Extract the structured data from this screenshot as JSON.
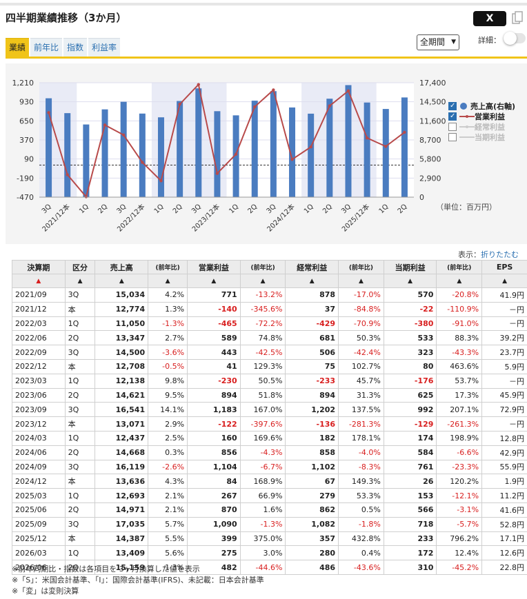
{
  "title": "四半期業績推移（3か月）",
  "x_button": "X",
  "tabs": [
    "業績",
    "前年比",
    "指数",
    "利益率"
  ],
  "period_select": "全期間",
  "detail_label": "詳細：",
  "legend": [
    {
      "label": "売上高(右軸)",
      "checked": true
    },
    {
      "label": "営業利益",
      "checked": true
    },
    {
      "label": "経常利益",
      "checked": false
    },
    {
      "label": "当期利益",
      "checked": false
    }
  ],
  "unit_label": "（単位：百万円）",
  "fold": {
    "prefix": "表示：",
    "link": "折りたたむ"
  },
  "chart_data": {
    "type": "bar+line",
    "categories": [
      "3Q",
      "2021/12本",
      "1Q",
      "2Q",
      "3Q",
      "2022/12本",
      "1Q",
      "2Q",
      "3Q",
      "2023/12本",
      "1Q",
      "2Q",
      "3Q",
      "2024/12本",
      "1Q",
      "2Q",
      "3Q",
      "2025/12本",
      "1Q",
      "2Q"
    ],
    "left_axis_ticks": [
      "1,210",
      "930",
      "650",
      "370",
      "90",
      "-190",
      "-470"
    ],
    "right_axis_ticks": [
      "17,400",
      "14,500",
      "11,600",
      "8,700",
      "5,800",
      "2,900",
      "0"
    ],
    "left_range": [
      -470,
      1210
    ],
    "right_range": [
      0,
      17400
    ],
    "series": [
      {
        "name": "売上高(右軸)",
        "type": "bar",
        "axis": "right",
        "color": "#4a7cc0",
        "values": [
          15034,
          12774,
          11050,
          13347,
          14500,
          12708,
          12138,
          14621,
          16541,
          13071,
          12437,
          14668,
          16119,
          13636,
          12693,
          14971,
          17035,
          14387,
          13409,
          15159
        ]
      },
      {
        "name": "営業利益",
        "type": "line",
        "axis": "left",
        "color": "#b84a4a",
        "values": [
          771,
          -140,
          -465,
          589,
          443,
          41,
          -230,
          894,
          1183,
          -122,
          160,
          856,
          1104,
          84,
          267,
          870,
          1090,
          399,
          275,
          482
        ]
      }
    ],
    "shaded_years": [
      true,
      false,
      true,
      false,
      true
    ]
  },
  "table": {
    "headers": [
      "決算期",
      "区分",
      "売上高",
      "(前年比)",
      "営業利益",
      "(前年比)",
      "経常利益",
      "(前年比)",
      "当期利益",
      "(前年比)",
      "EPS"
    ],
    "sort_marks": [
      "▲",
      "▲",
      "▲",
      "▲",
      "▲",
      "▲",
      "▲",
      "▲",
      "▲",
      "▲",
      "▲"
    ],
    "rows": [
      [
        "2021/09",
        "3Q",
        "15,034",
        "4.2%",
        "771",
        "-13.2%",
        "878",
        "-17.0%",
        "570",
        "-20.8%",
        "41.9円"
      ],
      [
        "2021/12",
        "本",
        "12,774",
        "1.3%",
        "-140",
        "-345.6%",
        "37",
        "-84.8%",
        "-22",
        "-110.9%",
        "－円"
      ],
      [
        "2022/03",
        "1Q",
        "11,050",
        "-1.3%",
        "-465",
        "-72.2%",
        "-429",
        "-70.9%",
        "-380",
        "-91.0%",
        "－円"
      ],
      [
        "2022/06",
        "2Q",
        "13,347",
        "2.7%",
        "589",
        "74.8%",
        "681",
        "50.3%",
        "533",
        "88.3%",
        "39.2円"
      ],
      [
        "2022/09",
        "3Q",
        "14,500",
        "-3.6%",
        "443",
        "-42.5%",
        "506",
        "-42.4%",
        "323",
        "-43.3%",
        "23.7円"
      ],
      [
        "2022/12",
        "本",
        "12,708",
        "-0.5%",
        "41",
        "129.3%",
        "75",
        "102.7%",
        "80",
        "463.6%",
        "5.9円"
      ],
      [
        "2023/03",
        "1Q",
        "12,138",
        "9.8%",
        "-230",
        "50.5%",
        "-233",
        "45.7%",
        "-176",
        "53.7%",
        "－円"
      ],
      [
        "2023/06",
        "2Q",
        "14,621",
        "9.5%",
        "894",
        "51.8%",
        "894",
        "31.3%",
        "625",
        "17.3%",
        "45.9円"
      ],
      [
        "2023/09",
        "3Q",
        "16,541",
        "14.1%",
        "1,183",
        "167.0%",
        "1,202",
        "137.5%",
        "992",
        "207.1%",
        "72.9円"
      ],
      [
        "2023/12",
        "本",
        "13,071",
        "2.9%",
        "-122",
        "-397.6%",
        "-136",
        "-281.3%",
        "-129",
        "-261.3%",
        "－円"
      ],
      [
        "2024/03",
        "1Q",
        "12,437",
        "2.5%",
        "160",
        "169.6%",
        "182",
        "178.1%",
        "174",
        "198.9%",
        "12.8円"
      ],
      [
        "2024/06",
        "2Q",
        "14,668",
        "0.3%",
        "856",
        "-4.3%",
        "858",
        "-4.0%",
        "584",
        "-6.6%",
        "42.9円"
      ],
      [
        "2024/09",
        "3Q",
        "16,119",
        "-2.6%",
        "1,104",
        "-6.7%",
        "1,102",
        "-8.3%",
        "761",
        "-23.3%",
        "55.9円"
      ],
      [
        "2024/12",
        "本",
        "13,636",
        "4.3%",
        "84",
        "168.9%",
        "67",
        "149.3%",
        "26",
        "120.2%",
        "1.9円"
      ],
      [
        "2025/03",
        "1Q",
        "12,693",
        "2.1%",
        "267",
        "66.9%",
        "279",
        "53.3%",
        "153",
        "-12.1%",
        "11.2円"
      ],
      [
        "2025/06",
        "2Q",
        "14,971",
        "2.1%",
        "870",
        "1.6%",
        "862",
        "0.5%",
        "566",
        "-3.1%",
        "41.6円"
      ],
      [
        "2025/09",
        "3Q",
        "17,035",
        "5.7%",
        "1,090",
        "-1.3%",
        "1,082",
        "-1.8%",
        "718",
        "-5.7%",
        "52.8円"
      ],
      [
        "2025/12",
        "本",
        "14,387",
        "5.5%",
        "399",
        "375.0%",
        "357",
        "432.8%",
        "233",
        "796.2%",
        "17.1円"
      ],
      [
        "2026/03",
        "1Q",
        "13,409",
        "5.6%",
        "275",
        "3.0%",
        "280",
        "0.4%",
        "172",
        "12.4%",
        "12.6円"
      ],
      [
        "2026/06",
        "2Q",
        "15,159",
        "1.3%",
        "482",
        "-44.6%",
        "486",
        "-43.6%",
        "310",
        "-45.2%",
        "22.8円"
      ]
    ]
  },
  "notes": [
    "※前年同期比・指数は各項目を 3ヶ月換算した値を表示",
    "※「S」：米国会計基準、「I」：国際会計基準(IFRS)、未記載：日本会計基準",
    "※「変」は変則決算"
  ]
}
